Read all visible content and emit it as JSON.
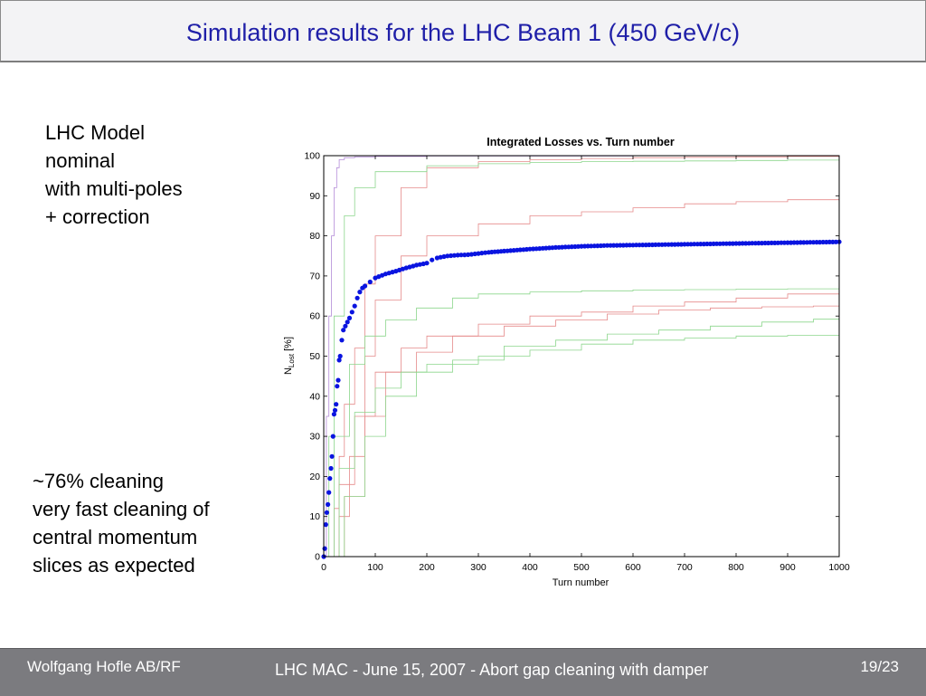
{
  "slide": {
    "title": "Simulation results for the LHC Beam 1 (450 GeV/c)",
    "model_text": "LHC Model\nnominal\nwith multi-poles\n+ correction",
    "cleaning_text": "~76% cleaning\nvery fast cleaning of\ncentral momentum\nslices as expected"
  },
  "footer": {
    "author": "Wolfgang Hofle AB/RF",
    "center": "LHC MAC - June 15, 2007 - Abort gap cleaning with damper",
    "page": "19/23"
  },
  "colors": {
    "title": "#1f1fa8",
    "main_series": "#0a14e0",
    "pink_series": "#e58a8a",
    "green_series": "#8cd68c",
    "violet_series": "#b48cd8",
    "footer_bg": "#7b7b7f"
  },
  "chart_data": {
    "type": "line",
    "title": "Integrated Losses vs. Turn number",
    "xlabel": "Turn number",
    "ylabel_main": "N",
    "ylabel_sub": "Lost",
    "ylabel_unit": " [%]",
    "xlim": [
      0,
      1000
    ],
    "ylim": [
      0,
      100
    ],
    "xticks": [
      0,
      100,
      200,
      300,
      400,
      500,
      600,
      700,
      800,
      900,
      1000
    ],
    "yticks": [
      0,
      10,
      20,
      30,
      40,
      50,
      60,
      70,
      80,
      90,
      100
    ],
    "grid": false,
    "main_series": {
      "style": "dots",
      "x": [
        0,
        2,
        4,
        6,
        8,
        10,
        12,
        14,
        16,
        18,
        20,
        22,
        24,
        26,
        28,
        30,
        32,
        35,
        38,
        42,
        46,
        50,
        55,
        60,
        65,
        70,
        75,
        80,
        90,
        100,
        120,
        140,
        160,
        180,
        200,
        210,
        220,
        240,
        260,
        280,
        300,
        320,
        350,
        400,
        450,
        500,
        550,
        600,
        650,
        700,
        750,
        800,
        850,
        900,
        950,
        1000
      ],
      "y": [
        0,
        2,
        8,
        11,
        13,
        16,
        19.5,
        22,
        25,
        30,
        35.5,
        36.5,
        38,
        42.5,
        44,
        49,
        50,
        54,
        56.5,
        57.5,
        58.5,
        59.5,
        61,
        62.5,
        64.5,
        66,
        67,
        67.5,
        68.5,
        69.5,
        70.5,
        71.2,
        72,
        72.7,
        73.2,
        74,
        74.5,
        75,
        75.2,
        75.3,
        75.6,
        75.9,
        76.2,
        76.7,
        77.1,
        77.4,
        77.6,
        77.7,
        77.8,
        77.9,
        78,
        78.1,
        78.2,
        78.3,
        78.4,
        78.5
      ]
    },
    "background_series": [
      {
        "color": "pink",
        "x": [
          0,
          20,
          30,
          40,
          60,
          80,
          100,
          150,
          200,
          300,
          400,
          500,
          600,
          700,
          800,
          900,
          1000
        ],
        "y": [
          0,
          12,
          25,
          38,
          52,
          68,
          80,
          92,
          97,
          98.5,
          99,
          99.3,
          99.5,
          99.6,
          99.7,
          99.8,
          99.9
        ]
      },
      {
        "color": "pink",
        "x": [
          0,
          30,
          50,
          80,
          100,
          150,
          200,
          300,
          400,
          500,
          600,
          700,
          800,
          900,
          1000
        ],
        "y": [
          0,
          10,
          25,
          50,
          64,
          75,
          80,
          83,
          85,
          86,
          87,
          88,
          88.5,
          89,
          89.3
        ]
      },
      {
        "color": "pink",
        "x": [
          0,
          40,
          80,
          120,
          180,
          250,
          350,
          450,
          550,
          650,
          750,
          850,
          950,
          1000
        ],
        "y": [
          0,
          15,
          35,
          46,
          51,
          55,
          57.5,
          59,
          60.5,
          61.5,
          62,
          62.3,
          62.5,
          62.6
        ]
      },
      {
        "color": "pink",
        "x": [
          0,
          30,
          60,
          100,
          150,
          200,
          300,
          400,
          500,
          600,
          700,
          800,
          900,
          1000
        ],
        "y": [
          0,
          18,
          35,
          46,
          52,
          55,
          58,
          60,
          61,
          62.5,
          63.5,
          64.5,
          65.5,
          66
        ]
      },
      {
        "color": "green",
        "x": [
          0,
          10,
          20,
          40,
          60,
          100,
          200,
          300,
          400,
          500,
          600,
          700,
          800,
          900,
          1000
        ],
        "y": [
          0,
          30,
          60,
          85,
          92,
          96,
          97.5,
          98,
          98.3,
          98.5,
          98.6,
          98.7,
          98.8,
          98.9,
          99
        ]
      },
      {
        "color": "green",
        "x": [
          0,
          20,
          50,
          80,
          120,
          180,
          250,
          300,
          400,
          500,
          600,
          700,
          800,
          900,
          1000
        ],
        "y": [
          0,
          30,
          48,
          55,
          59,
          62,
          64.5,
          65.5,
          66,
          66.3,
          66.5,
          66.6,
          66.7,
          66.8,
          66.9
        ]
      },
      {
        "color": "green",
        "x": [
          0,
          30,
          60,
          100,
          150,
          200,
          300,
          400,
          500,
          600,
          700,
          800,
          900,
          1000
        ],
        "y": [
          0,
          22,
          36,
          42,
          46,
          48,
          50,
          51.5,
          53,
          54,
          54.5,
          55,
          55.2,
          55.4
        ]
      },
      {
        "color": "green",
        "x": [
          0,
          40,
          80,
          120,
          180,
          250,
          350,
          450,
          550,
          650,
          750,
          850,
          950,
          1000
        ],
        "y": [
          0,
          15,
          30,
          40,
          46,
          49,
          52.5,
          54,
          55.5,
          56.5,
          57.5,
          58.5,
          59.2,
          59.5
        ]
      },
      {
        "color": "violet",
        "x": [
          0,
          5,
          10,
          15,
          20,
          25,
          30,
          40,
          60,
          100,
          200,
          400,
          600,
          800,
          1000
        ],
        "y": [
          0,
          35,
          60,
          80,
          92,
          97,
          99,
          99.5,
          99.7,
          99.8,
          99.9,
          99.9,
          100,
          100,
          100
        ]
      }
    ]
  }
}
